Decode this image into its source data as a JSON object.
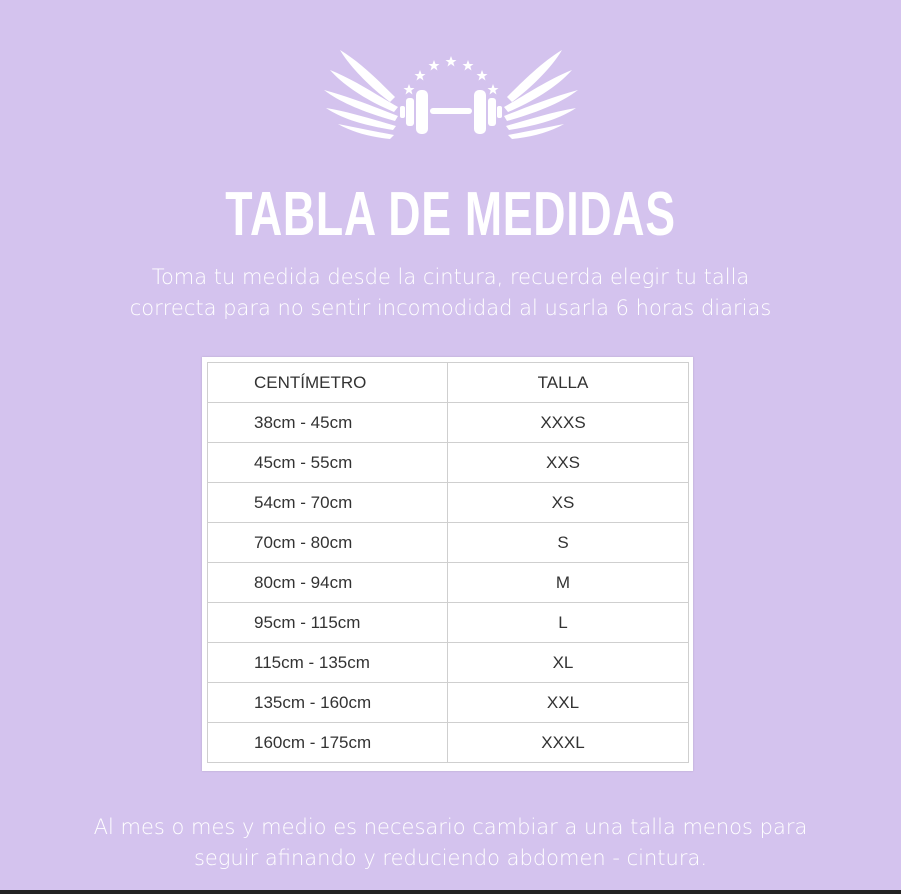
{
  "logo": {
    "icon": "winged-dumbbell-logo",
    "color": "#ffffff"
  },
  "title": "TABLA DE MEDIDAS",
  "subtitle": [
    "Toma tu medida desde la cintura, recuerda elegir tu talla",
    "correcta para no sentir incomodidad al usarla 6 horas diarias"
  ],
  "table": {
    "headers": [
      "CENTÍMETRO",
      "TALLA"
    ],
    "rows": [
      [
        "38cm - 45cm",
        "XXXS"
      ],
      [
        "45cm - 55cm",
        "XXS"
      ],
      [
        "54cm - 70cm",
        "XS"
      ],
      [
        "70cm - 80cm",
        "S"
      ],
      [
        "80cm - 94cm",
        "M"
      ],
      [
        "95cm - 115cm",
        "L"
      ],
      [
        "115cm - 135cm",
        "XL"
      ],
      [
        "135cm - 160cm",
        "XXL"
      ],
      [
        "160cm - 175cm",
        "XXXL"
      ]
    ]
  },
  "footer": [
    "Al mes o mes y medio es necesario cambiar a una talla menos para",
    "seguir afinando y reduciendo abdomen - cintura."
  ],
  "colors": {
    "background": "#d4c3ee",
    "text": "#ffffff"
  }
}
